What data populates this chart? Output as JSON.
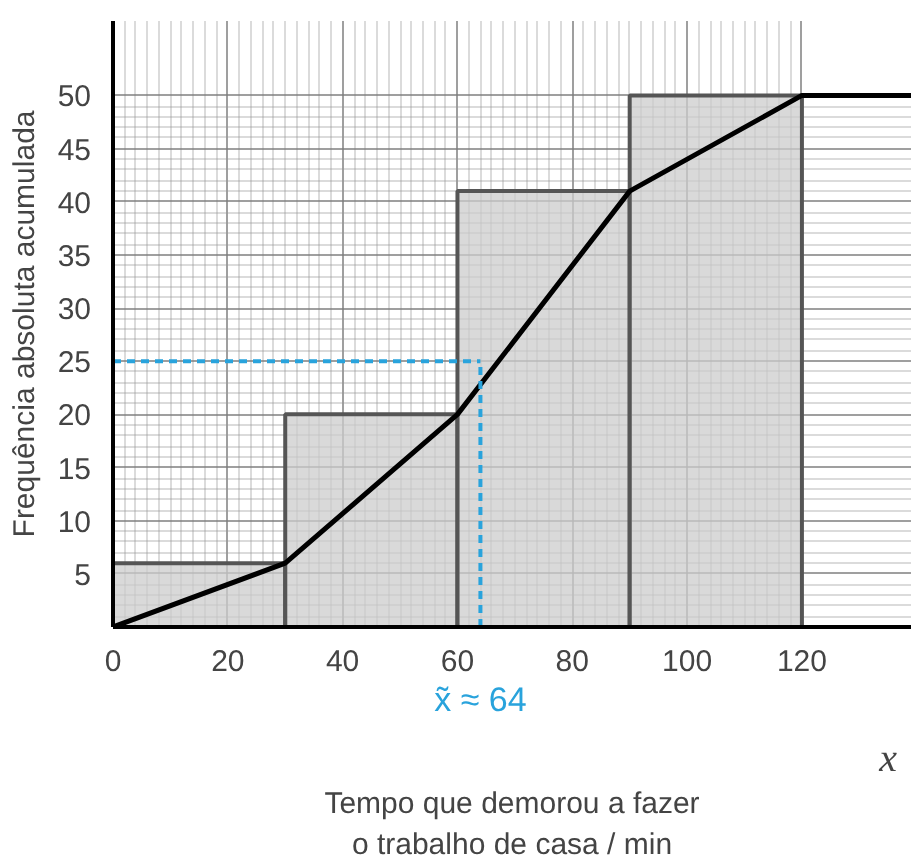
{
  "chart_data": {
    "type": "histogram",
    "xlabel": "Tempo que demorou a fazer\no trabalho de casa / min",
    "ylabel": "Frequência absoluta acumulada",
    "bins": [
      0,
      30,
      60,
      90,
      120
    ],
    "values": [
      6,
      20,
      41,
      50
    ],
    "color": "#cccccc",
    "series": [
      {
        "type": "line",
        "x": [
          0,
          30,
          60,
          90,
          120,
          139
        ],
        "values": [
          0,
          6,
          20,
          41,
          50,
          50
        ],
        "color": "#000000"
      }
    ],
    "xlim": [
      0,
      139
    ],
    "ylim": [
      0,
      57
    ],
    "xticks": [
      0,
      20,
      40,
      60,
      80,
      100,
      120
    ],
    "yticks": [
      5,
      10,
      15,
      20,
      25,
      30,
      35,
      40,
      45,
      50
    ],
    "grid": true,
    "ref_lines": [
      {
        "axis": "y",
        "value": 25,
        "label": null,
        "color": "#29a3dc",
        "line_style": "dashed"
      },
      {
        "axis": "x",
        "value": 64,
        "label": "x̃ ≈ 64",
        "color": "#29a3dc",
        "line_style": "dashed"
      }
    ],
    "annotations": [
      "x"
    ]
  }
}
